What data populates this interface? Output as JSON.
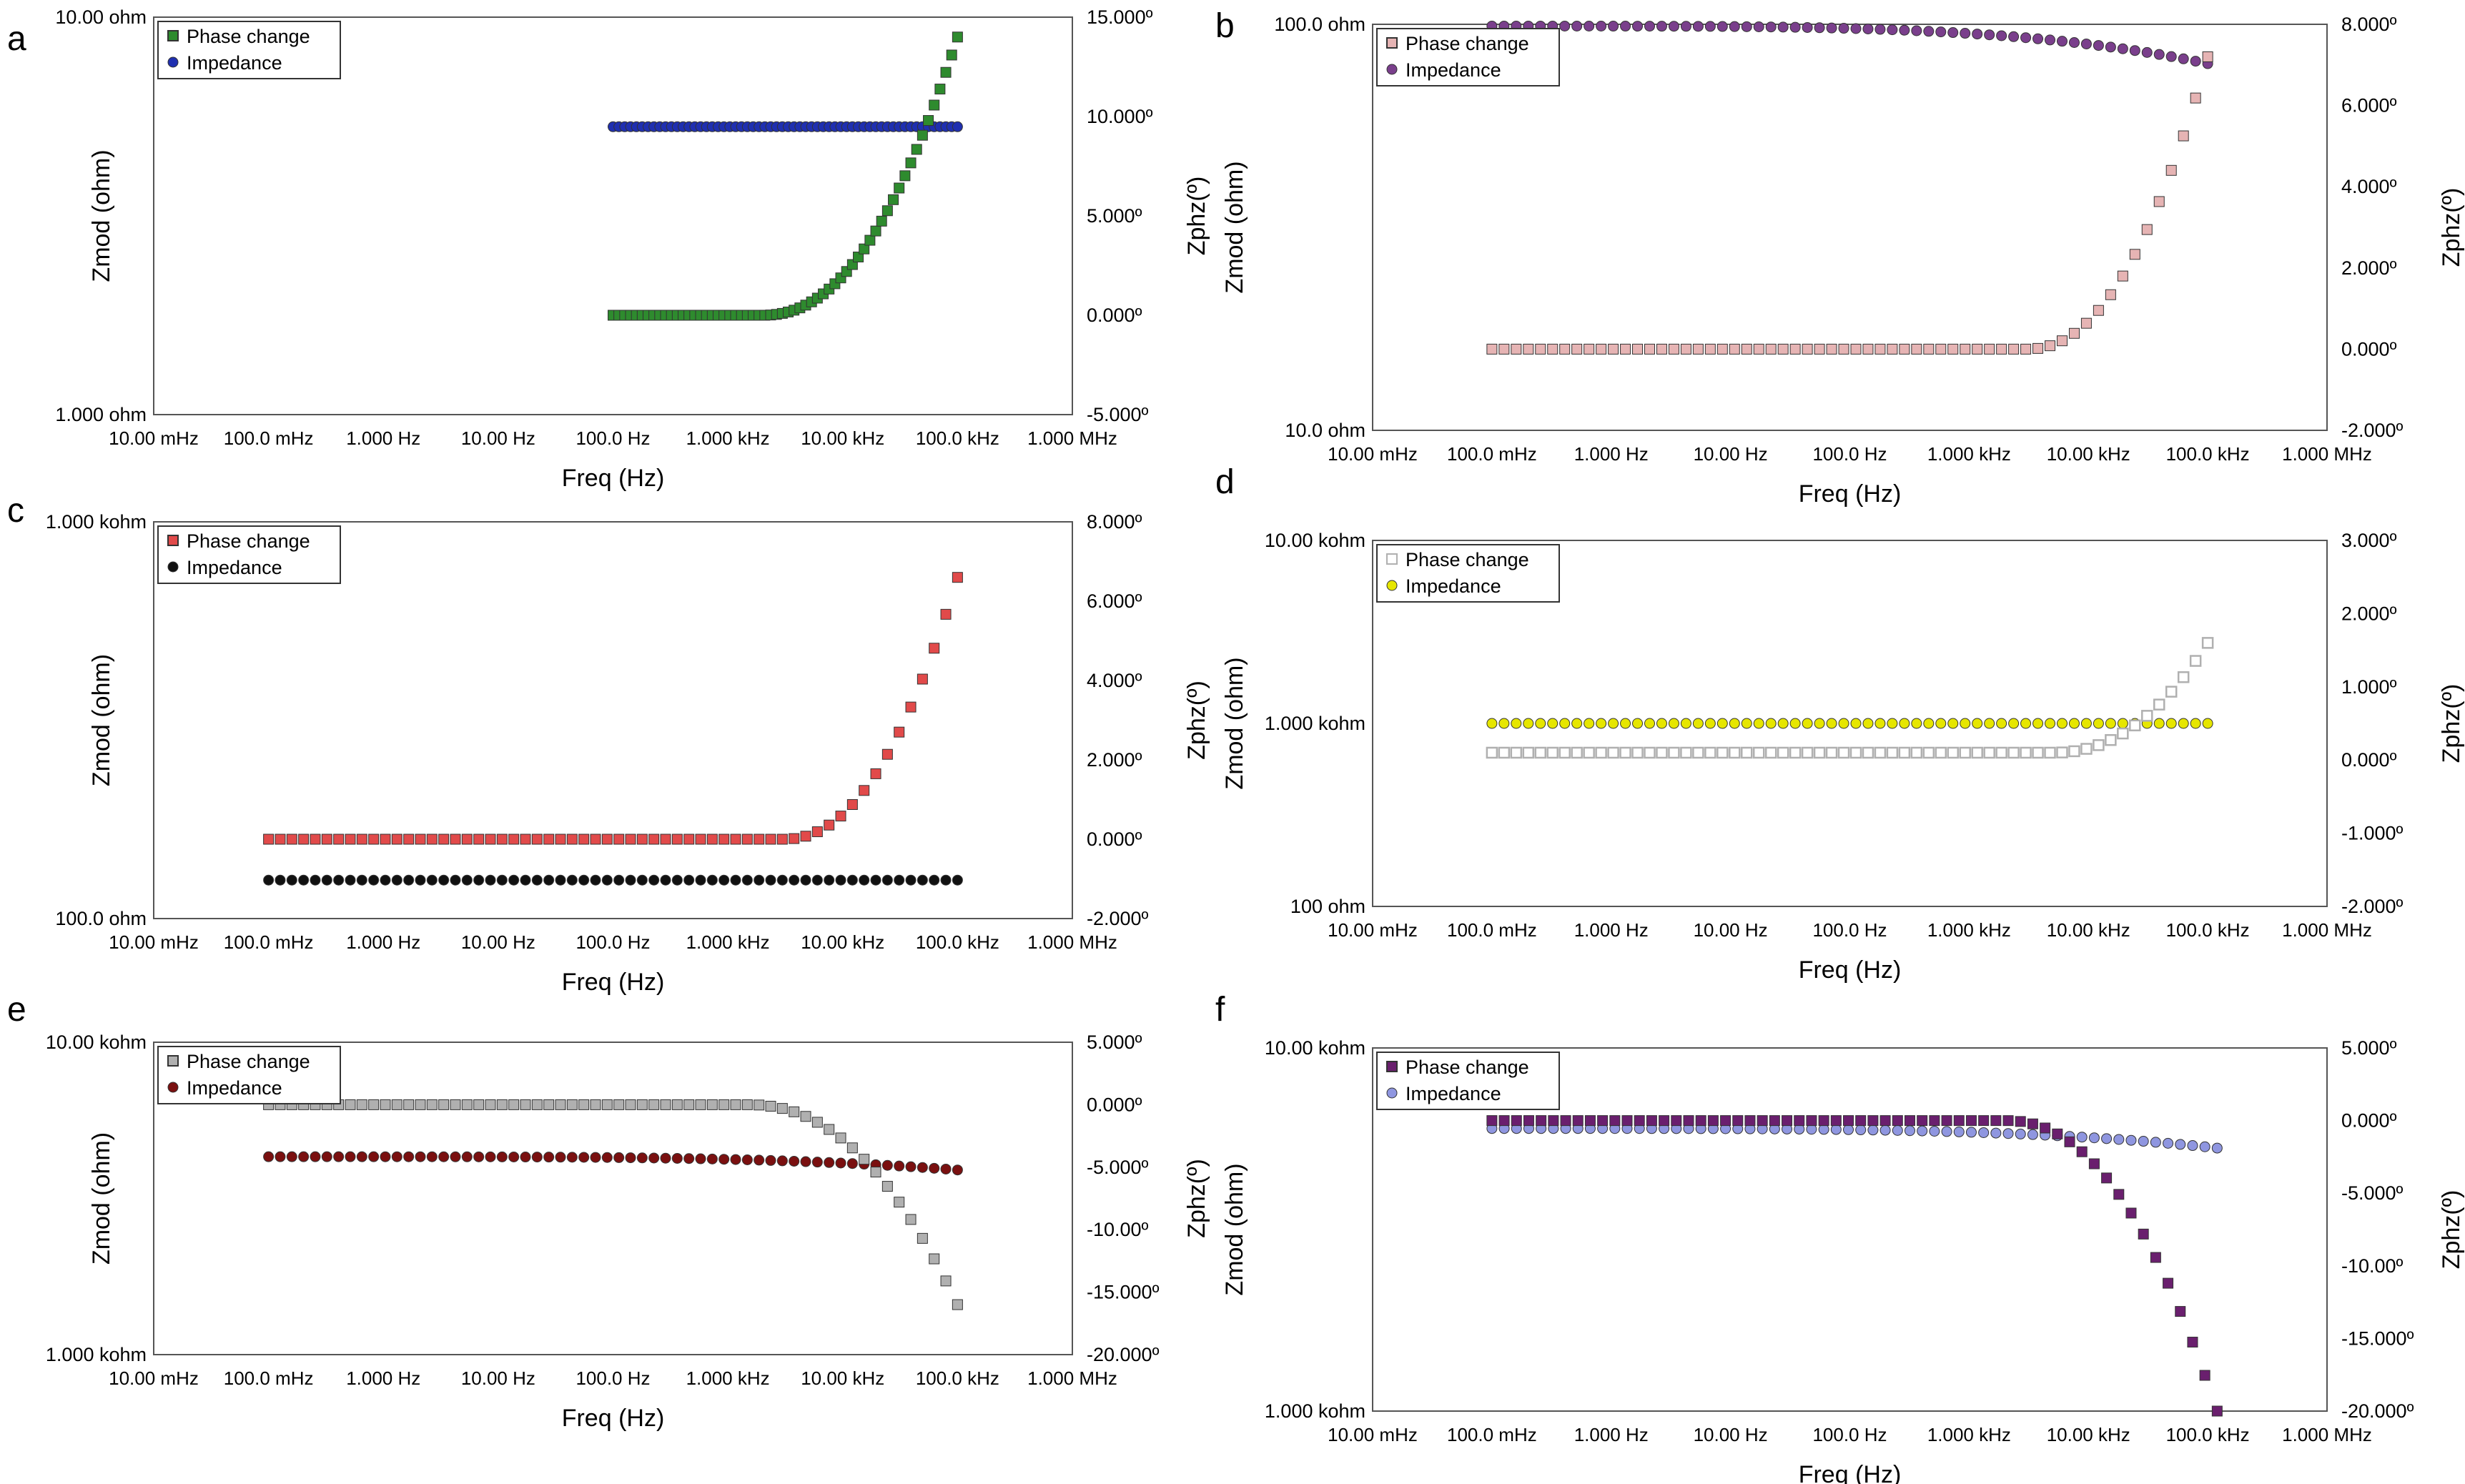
{
  "x_axis": {
    "label": "Freq (Hz)",
    "ticks": [
      "10.00 mHz",
      "100.0 mHz",
      "1.000 Hz",
      "10.00 Hz",
      "100.0 Hz",
      "1.000 kHz",
      "10.00 kHz",
      "100.0 kHz",
      "1.000 MHz"
    ],
    "log_range": [
      -2,
      6
    ]
  },
  "colors": {
    "axis": "#000000",
    "green": "#2e8b2e",
    "blue": "#1f2fb0",
    "pink": "#e6b4b4",
    "purple": "#7a3f8c",
    "red": "#e14a4a",
    "black": "#111111",
    "gray": "#b0b0b0",
    "yellow": "#e6e600",
    "darkred": "#7a1010",
    "violet": "#6a1f6e",
    "lightblue": "#8f96e0"
  },
  "chart_data": [
    {
      "type": "scatter",
      "panel_label": "a",
      "legend": [
        "Phase change",
        "Impedance"
      ],
      "ylabel_left": "Zmod (ohm)",
      "ylabel_right": "Zphz(º)",
      "left_ticks": [
        "10.00 ohm",
        "1.000 ohm"
      ],
      "left_log_range": [
        0,
        1
      ],
      "right_ticks": [
        "15.000º",
        "10.000º",
        "5.000º",
        "0.000º",
        "-5.000º"
      ],
      "right_range": [
        -5,
        15
      ],
      "impedance": {
        "color_key": "blue",
        "marker": "circle",
        "from": 100.0,
        "to": 100000,
        "start": 5.3,
        "end": 5.3
      },
      "phase": {
        "color_key": "green",
        "marker": "square",
        "from": 100.0,
        "to": 100000,
        "base": 0.0,
        "knee_hz": 2000,
        "end": 14.0
      }
    },
    {
      "type": "scatter",
      "panel_label": "b",
      "legend": [
        "Phase change",
        "Impedance"
      ],
      "ylabel_left": "Zmod (ohm)",
      "ylabel_right": "Zphz(º)",
      "left_ticks": [
        "100.0 ohm",
        "10.0 ohm"
      ],
      "left_log_range": [
        1,
        2
      ],
      "right_ticks": [
        "8.000º",
        "6.000º",
        "4.000º",
        "2.000º",
        "0.000º",
        "-2.000º"
      ],
      "right_range": [
        -2,
        8
      ],
      "impedance": {
        "color_key": "purple",
        "marker": "circle",
        "from": 0.1,
        "to": 100000,
        "start": 99.0,
        "end": 80.0
      },
      "phase": {
        "color_key": "pink",
        "marker": "square",
        "from": 0.1,
        "to": 100000,
        "base": 0.0,
        "knee_hz": 3000,
        "end": 7.2
      }
    },
    {
      "type": "scatter",
      "panel_label": "c",
      "legend": [
        "Phase change",
        "Impedance"
      ],
      "ylabel_left": "Zmod (ohm)",
      "ylabel_right": "Zphz(º)",
      "left_ticks": [
        "1.000 kohm",
        "100.0 ohm"
      ],
      "left_log_range": [
        2,
        3
      ],
      "right_ticks": [
        "8.000º",
        "6.000º",
        "4.000º",
        "2.000º",
        "0.000º",
        "-2.000º"
      ],
      "right_range": [
        -2,
        8
      ],
      "impedance": {
        "color_key": "black",
        "marker": "circle",
        "from": 0.1,
        "to": 100000,
        "start": 125.0,
        "end": 125.0
      },
      "phase": {
        "color_key": "red",
        "marker": "square",
        "from": 0.1,
        "to": 100000,
        "base": 0.0,
        "knee_hz": 3000,
        "end": 6.6
      }
    },
    {
      "type": "scatter",
      "panel_label": "d",
      "legend": [
        "Phase change",
        "Impedance"
      ],
      "ylabel_left": "Zmod (ohm)",
      "ylabel_right": "Zphz(º)",
      "left_ticks": [
        "10.00 kohm",
        "1.000 kohm",
        "100 ohm"
      ],
      "left_log_range": [
        2,
        4
      ],
      "right_ticks": [
        "3.000º",
        "2.000º",
        "1.000º",
        "0.000º",
        "-1.000º",
        "-2.000º"
      ],
      "right_range": [
        -2,
        3
      ],
      "impedance": {
        "color_key": "yellow",
        "marker": "circle",
        "from": 0.1,
        "to": 100000,
        "start": 1000.0,
        "end": 1000.0
      },
      "phase": {
        "color_key": "gray",
        "marker": "hollow-square",
        "from": 0.1,
        "to": 100000,
        "base": 0.1,
        "knee_hz": 5000,
        "end": 1.6
      }
    },
    {
      "type": "scatter",
      "panel_label": "e",
      "legend": [
        "Phase change",
        "Impedance"
      ],
      "ylabel_left": "Zmod (ohm)",
      "ylabel_right": "Zphz(º)",
      "left_ticks": [
        "10.00 kohm",
        "1.000 kohm"
      ],
      "left_log_range": [
        3,
        4
      ],
      "right_ticks": [
        "5.000º",
        "0.000º",
        "-5.000º",
        "-10.00º",
        "-15.000º",
        "-20.000º"
      ],
      "right_range": [
        -20,
        5
      ],
      "impedance": {
        "color_key": "darkred",
        "marker": "circle",
        "from": 0.1,
        "to": 100000,
        "start": 4300.0,
        "end": 3900.0
      },
      "phase": {
        "color_key": "gray",
        "marker": "square",
        "from": 0.1,
        "to": 100000,
        "base": 0.0,
        "knee_hz": 1500,
        "end": -16.0
      }
    },
    {
      "type": "scatter",
      "panel_label": "f",
      "legend": [
        "Phase change",
        "Impedance"
      ],
      "ylabel_left": "Zmod (ohm)",
      "ylabel_right": "Zphz(º)",
      "left_ticks": [
        "10.00 kohm",
        "1.000 kohm"
      ],
      "left_log_range": [
        3,
        4
      ],
      "right_ticks": [
        "5.000º",
        "0.000º",
        "-5.000º",
        "-10.00º",
        "-15.000º",
        "-20.000º"
      ],
      "right_range": [
        -20,
        5
      ],
      "impedance": {
        "color_key": "lightblue",
        "marker": "circle",
        "from": 0.1,
        "to": 120000,
        "start": 6000.0,
        "end": 5300.0
      },
      "phase": {
        "color_key": "violet",
        "marker": "square",
        "from": 0.1,
        "to": 120000,
        "base": 0.0,
        "knee_hz": 2000,
        "end": -20.0
      }
    }
  ]
}
